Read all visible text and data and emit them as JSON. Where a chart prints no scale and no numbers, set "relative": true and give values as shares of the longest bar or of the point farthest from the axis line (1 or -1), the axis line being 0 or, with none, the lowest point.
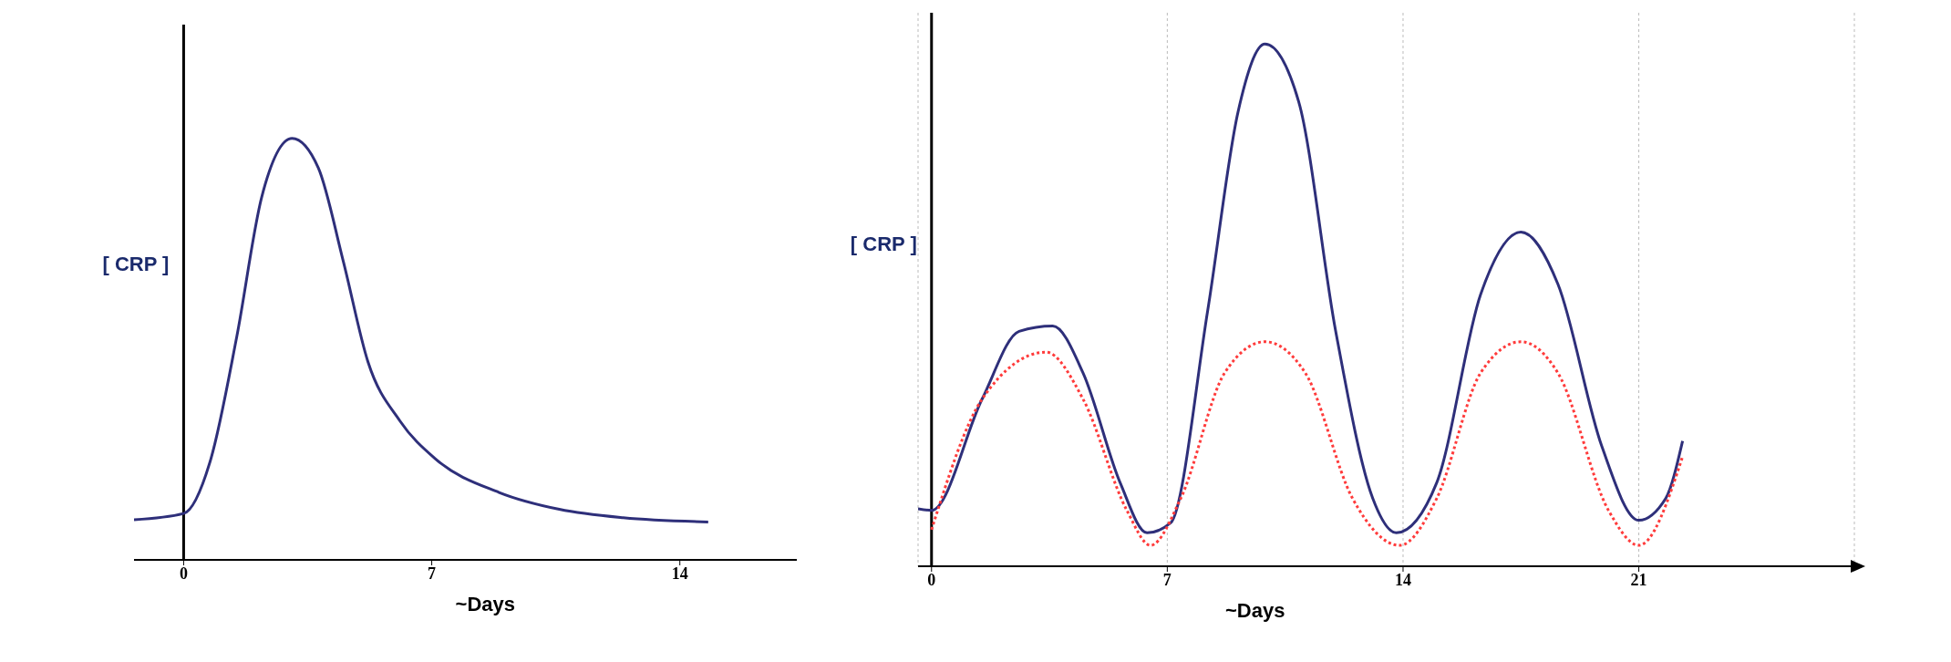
{
  "chart_data": [
    {
      "type": "line",
      "relative": true,
      "ylabel": "[ CRP ]",
      "xlabel": "~Days",
      "xlim": [
        -1.4,
        17.3
      ],
      "xticks": [
        0,
        7,
        14
      ],
      "marker": "none",
      "series": [
        {
          "color": "#2e2f7a",
          "x": [
            -1.4,
            0,
            0.77,
            1.5,
            2.2,
            3.06,
            3.8,
            4.5,
            5.2,
            6.1,
            7.1,
            8.9,
            10.6,
            12.4,
            14.8
          ],
          "values": [
            0.095,
            0.11,
            0.24,
            0.53,
            0.86,
            1,
            0.93,
            0.71,
            0.47,
            0.33,
            0.24,
            0.16,
            0.12,
            0.1,
            0.09
          ]
        }
      ]
    },
    {
      "type": "line",
      "relative": true,
      "ylabel": "[ CRP ]",
      "xlabel": "~Days",
      "xlim": [
        -0.4,
        27.4
      ],
      "xticks": [
        0,
        7,
        14,
        21
      ],
      "grid": "x",
      "marker": "none",
      "series": [
        {
          "color": "#2e2f7a",
          "x": [
            -0.4,
            0,
            1.5,
            2.6,
            3.6,
            4.5,
            5.6,
            6.4,
            7.1,
            8.2,
            9.1,
            9.9,
            10.9,
            12,
            13.1,
            13.8,
            15,
            16.3,
            17.5,
            18.6,
            19.9,
            21,
            21.8,
            22.3
          ],
          "values": [
            0.11,
            0.107,
            0.32,
            0.45,
            0.46,
            0.37,
            0.16,
            0.064,
            0.083,
            0.49,
            0.87,
            1,
            0.89,
            0.45,
            0.13,
            0.064,
            0.16,
            0.52,
            0.64,
            0.54,
            0.23,
            0.088,
            0.13,
            0.24
          ]
        },
        {
          "color": "#ff3b3b",
          "line_style": "dotted",
          "x": [
            0,
            1.5,
            3.4,
            4.5,
            5.8,
            6.5,
            7.4,
            8.7,
            9.9,
            11.1,
            12.5,
            13.9,
            15,
            16.3,
            17.5,
            18.6,
            20.1,
            21,
            22.3
          ],
          "values": [
            0.07,
            0.32,
            0.41,
            0.32,
            0.107,
            0.04,
            0.13,
            0.37,
            0.43,
            0.37,
            0.13,
            0.04,
            0.13,
            0.37,
            0.43,
            0.37,
            0.107,
            0.04,
            0.21
          ]
        }
      ]
    }
  ]
}
